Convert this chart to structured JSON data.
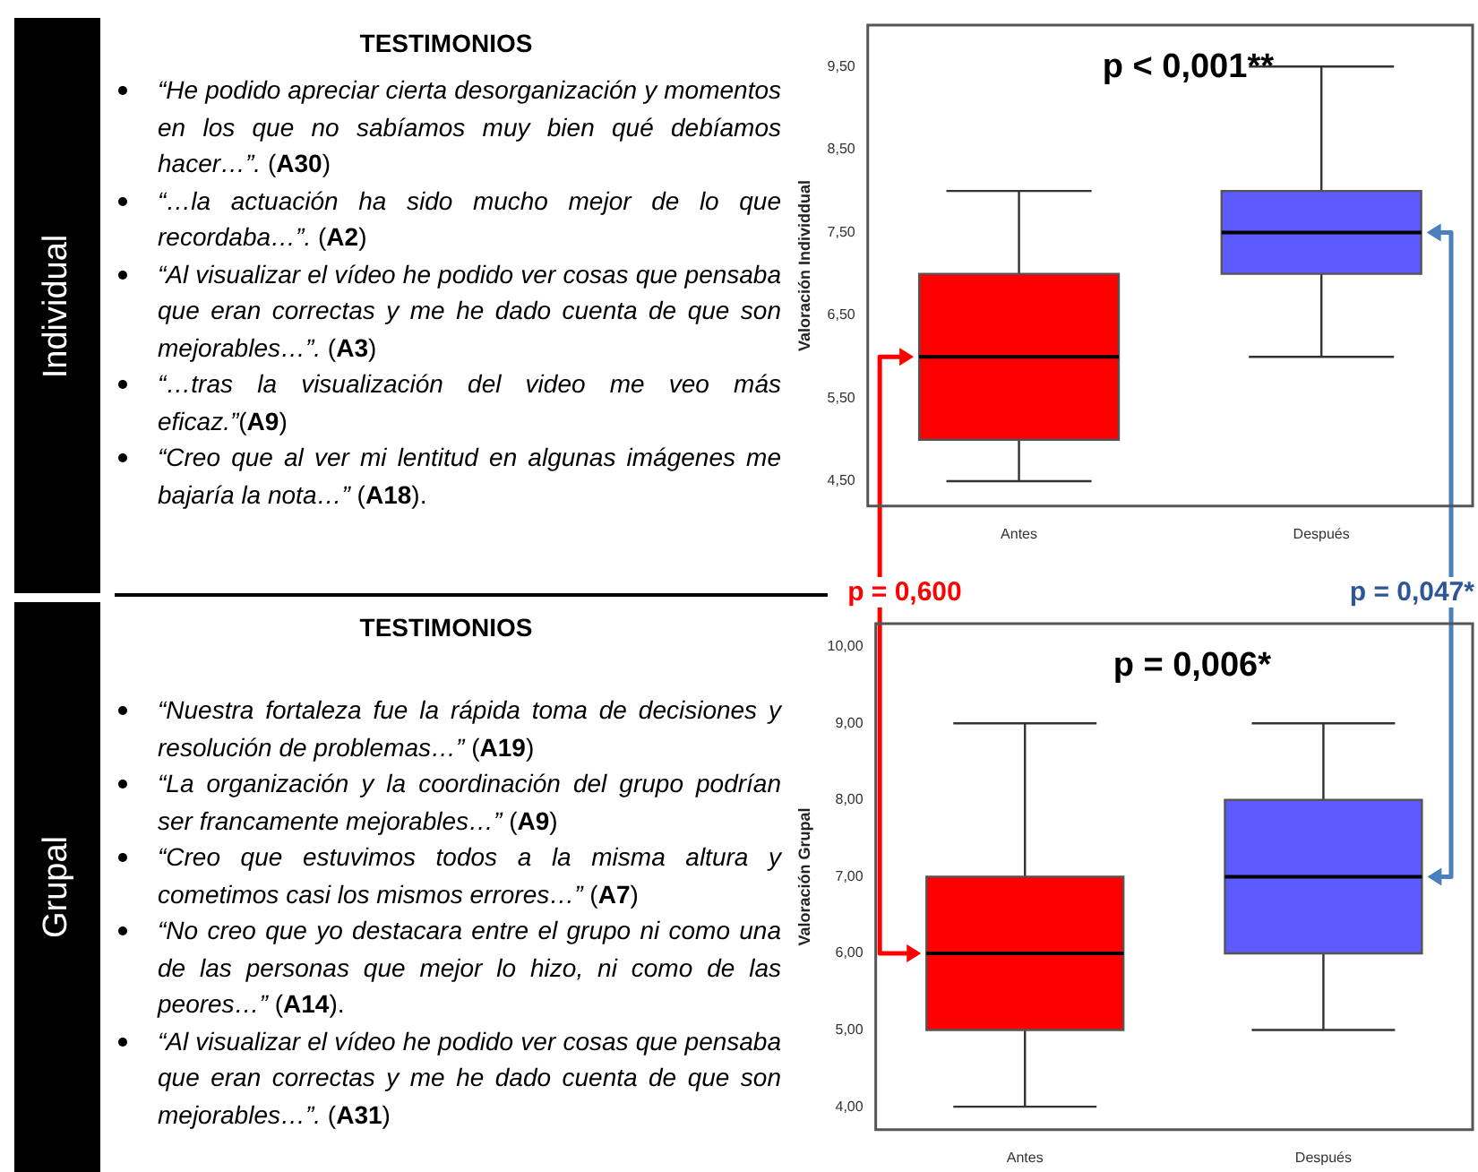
{
  "chart_data": [
    {
      "type": "other",
      "ylabel": "Individual",
      "title": "TESTIMONIOS",
      "annotations": [
        "“He podido apreciar cierta desorganización y momentos en los que no sabíamos muy bien qué debíamos hacer…”. (A30)",
        "“…la actuación ha sido mucho mejor de lo que recordaba…”. (A2)",
        "“Al visualizar el vídeo he podido ver cosas que pensaba que eran correctas y me he dado cuenta de que son mejorables…”. (A3)",
        "“…tras la visualización del video me veo más eficaz.”(A9)",
        "“Creo que al ver mi lentitud en algunas imágenes me bajaría la nota…” (A18)."
      ]
    },
    {
      "type": "box",
      "ylabel": "Valoración Individdual",
      "categories": [
        "Antes",
        "Después"
      ],
      "colors": [
        "#ff0000",
        "#5b5bff"
      ],
      "boxes": [
        {
          "low": 4.5,
          "q1": 5.0,
          "median": 6.0,
          "q3": 7.0,
          "high": 8.0
        },
        {
          "low": 6.0,
          "q1": 7.0,
          "median": 7.5,
          "q3": 8.0,
          "high": 9.5
        }
      ],
      "ylim": [
        4.2,
        10.0
      ],
      "yticks": [
        {
          "value": 4.5,
          "label": "4,50"
        },
        {
          "value": 5.5,
          "label": "5,50"
        },
        {
          "value": 6.5,
          "label": "6,50"
        },
        {
          "value": 7.5,
          "label": "7,50"
        },
        {
          "value": 8.5,
          "label": "8,50"
        },
        {
          "value": 9.5,
          "label": "9,50"
        }
      ],
      "annotations": [
        "p < 0,001**"
      ]
    },
    {
      "type": "other",
      "ylabel": "Grupal",
      "title": "TESTIMONIOS",
      "annotations": [
        "“Nuestra fortaleza fue la rápida toma de decisiones y resolución de problemas…” (A19)",
        "“La organización y la coordinación del grupo podrían ser francamente mejorables…” (A9)",
        "“Creo que estuvimos todos a la misma altura y cometimos casi los mismos errores…” (A7)",
        "“No creo que yo destacara entre el grupo ni como una de las personas que mejor lo hizo, ni como de las peores…” (A14).",
        "“Al visualizar el vídeo he podido ver cosas que pensaba que eran correctas y me he dado cuenta de que son mejorables…”. (A31)"
      ]
    },
    {
      "type": "box",
      "ylabel": "Valoración Grupal",
      "categories": [
        "Antes",
        "Después"
      ],
      "colors": [
        "#ff0000",
        "#5b5bff"
      ],
      "boxes": [
        {
          "low": 4.0,
          "q1": 5.0,
          "median": 6.0,
          "q3": 7.0,
          "high": 9.0
        },
        {
          "low": 5.0,
          "q1": 6.0,
          "median": 7.0,
          "q3": 8.0,
          "high": 9.0
        }
      ],
      "ylim": [
        3.7,
        10.3
      ],
      "yticks": [
        {
          "value": 4,
          "label": "4,00"
        },
        {
          "value": 5,
          "label": "5,00"
        },
        {
          "value": 6,
          "label": "6,00"
        },
        {
          "value": 7,
          "label": "7,00"
        },
        {
          "value": 8,
          "label": "8,00"
        },
        {
          "value": 9,
          "label": "9,00"
        },
        {
          "value": 10,
          "label": "10,00"
        }
      ],
      "annotations": [
        "p = 0,006*",
        "p = 0,600",
        "p = 0,047*"
      ]
    }
  ]
}
